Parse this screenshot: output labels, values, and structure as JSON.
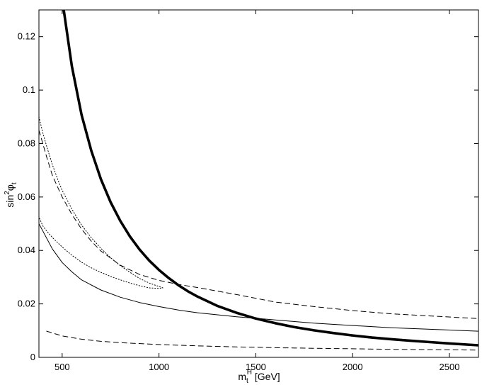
{
  "chart_data": {
    "type": "line",
    "title": "",
    "xlabel": {
      "main": "m",
      "sub": "t",
      "sup": "H",
      "tail": " [GeV]"
    },
    "ylabel": {
      "main": "sin",
      "sup": "2",
      "phi": "φ",
      "sub": "t"
    },
    "xlim": [
      380,
      2650
    ],
    "ylim": [
      0,
      0.13
    ],
    "xticks": [
      500,
      1000,
      1500,
      2000,
      2500
    ],
    "xtick_labels": [
      "500",
      "1000",
      "1500",
      "2000",
      "2500"
    ],
    "yticks": [
      0,
      0.02,
      0.04,
      0.06,
      0.08,
      0.1,
      0.12
    ],
    "ytick_labels": [
      "0",
      "0.02",
      "0.04",
      "0.06",
      "0.08",
      "0.1",
      "0.12"
    ],
    "grid": false,
    "series": [
      {
        "style": "thick-solid",
        "color": "#000000",
        "x": [
          506,
          550,
          600,
          650,
          700,
          750,
          800,
          850,
          900,
          950,
          1000,
          1050,
          1100,
          1150,
          1200,
          1300,
          1400,
          1500,
          1600,
          1700,
          1800,
          1900,
          2000,
          2100,
          2200,
          2300,
          2400,
          2500,
          2650
        ],
        "y": [
          0.131,
          0.109,
          0.0908,
          0.0774,
          0.0667,
          0.0581,
          0.0511,
          0.0452,
          0.0403,
          0.0362,
          0.0327,
          0.0297,
          0.027,
          0.0247,
          0.0227,
          0.0193,
          0.0167,
          0.0145,
          0.0128,
          0.0113,
          0.0101,
          0.0091,
          0.0082,
          0.0074,
          0.0068,
          0.0062,
          0.0057,
          0.0052,
          0.0045
        ]
      },
      {
        "style": "thin-solid",
        "color": "#000000",
        "x": [
          380,
          450,
          500,
          550,
          600,
          700,
          800,
          900,
          1000,
          1100,
          1200,
          1400,
          1600,
          1800,
          2000,
          2200,
          2400,
          2650
        ],
        "y": [
          0.05,
          0.0405,
          0.0355,
          0.032,
          0.029,
          0.0252,
          0.0225,
          0.0205,
          0.019,
          0.0177,
          0.0167,
          0.0152,
          0.014,
          0.0128,
          0.0119,
          0.0111,
          0.0105,
          0.0098
        ]
      },
      {
        "style": "dashed",
        "color": "#000000",
        "x": [
          380,
          420,
          450,
          500,
          550,
          600,
          650,
          700,
          800,
          900,
          1000,
          1100,
          1200,
          1400,
          1600,
          1800,
          2000,
          2200,
          2400,
          2650
        ],
        "y": [
          0.085,
          0.075,
          0.068,
          0.06,
          0.0535,
          0.048,
          0.0435,
          0.0398,
          0.0345,
          0.031,
          0.0288,
          0.0273,
          0.0261,
          0.0235,
          0.0207,
          0.019,
          0.0175,
          0.0163,
          0.0155,
          0.0145
        ]
      },
      {
        "style": "dashed",
        "color": "#000000",
        "x": [
          420,
          500,
          600,
          700,
          800,
          1000,
          1200,
          1400,
          1600,
          1800,
          2000,
          2200,
          2400,
          2650
        ],
        "y": [
          0.0098,
          0.008,
          0.0068,
          0.006,
          0.0055,
          0.0048,
          0.0043,
          0.0039,
          0.0036,
          0.0034,
          0.0032,
          0.003,
          0.0029,
          0.0027
        ]
      },
      {
        "style": "dotted",
        "color": "#000000",
        "x": [
          380,
          400,
          420,
          450,
          480,
          500,
          550,
          600,
          650,
          700,
          750,
          800,
          850,
          900,
          950,
          1000,
          1020,
          1000,
          950,
          900,
          850,
          800,
          750,
          700,
          650,
          600,
          550,
          500,
          450,
          420,
          400,
          380
        ],
        "y": [
          0.09,
          0.084,
          0.079,
          0.072,
          0.066,
          0.0625,
          0.0555,
          0.0495,
          0.0448,
          0.0408,
          0.0373,
          0.0343,
          0.0318,
          0.0295,
          0.0278,
          0.0265,
          0.026,
          0.0258,
          0.026,
          0.0268,
          0.0278,
          0.029,
          0.0303,
          0.0318,
          0.0335,
          0.0356,
          0.0382,
          0.0413,
          0.0448,
          0.0473,
          0.0492,
          0.0525
        ]
      }
    ]
  }
}
